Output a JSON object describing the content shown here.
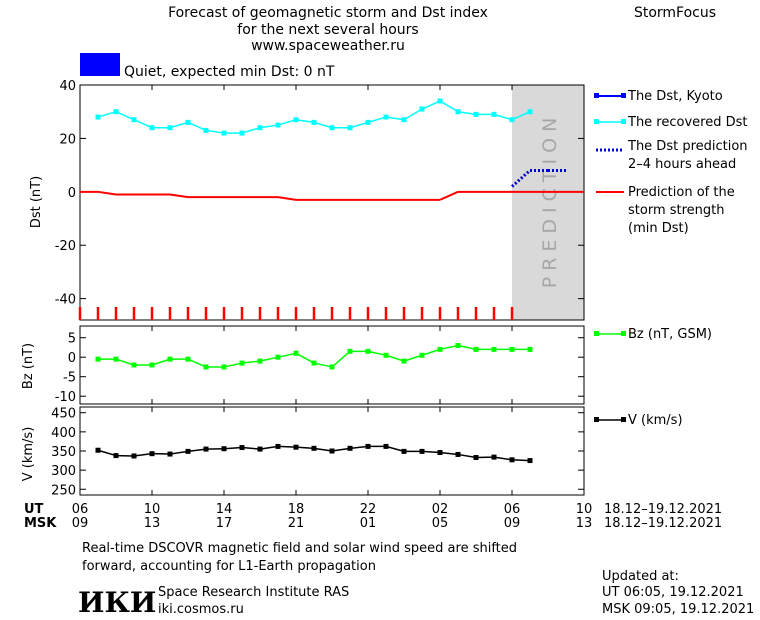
{
  "header": {
    "title_lines": [
      "Forecast of geomagnetic storm and Dst index",
      "for the next several hours",
      "www.spaceweather.ru"
    ],
    "brand": "StormFocus",
    "status_text": "Quiet, expected min Dst: 0 nT",
    "status_color": "#0000ff"
  },
  "legend": {
    "dst_kyoto": "The Dst, Kyoto",
    "recovered": "The recovered Dst",
    "prediction_line1": "The Dst prediction",
    "prediction_line2": "2–4 hours ahead",
    "strength_line1": "Prediction of the",
    "strength_line2": "storm strength",
    "strength_line3": "(min Dst)",
    "bz": "Bz (nT, GSM)",
    "v": "V (km/s)"
  },
  "colors": {
    "dst_kyoto": "#0000ff",
    "recovered": "#00ffff",
    "prediction": "#0000cc",
    "strength": "#ff0000",
    "bz": "#00ff00",
    "v": "#000000",
    "prediction_band": "#d9d9d9"
  },
  "prediction_label": "PREDICTION",
  "time_axis": {
    "ut_label": "UT",
    "msk_label": "MSK",
    "ut_ticks": [
      "06",
      "10",
      "14",
      "18",
      "22",
      "02",
      "06",
      "10"
    ],
    "msk_ticks": [
      "09",
      "13",
      "17",
      "21",
      "01",
      "05",
      "09",
      "13"
    ],
    "ut_range": "18.12–19.12.2021",
    "msk_range": "18.12–19.12.2021"
  },
  "footer": {
    "note_line1": "Real-time DSCOVR magnetic field and solar wind speed are shifted",
    "note_line2": "forward, accounting for L1-Earth propagation",
    "updated_label": "Updated at:",
    "updated_ut": "UT   06:05, 19.12.2021",
    "updated_msk": "MSK 09:05, 19.12.2021",
    "logo_text": "ИКИ",
    "institute": "Space Research Institute RAS",
    "site": "iki.cosmos.ru"
  },
  "chart_data": [
    {
      "type": "line",
      "name": "dst-panel",
      "ylabel": "Dst (nT)",
      "ylim": [
        -48,
        40
      ],
      "yticks": [
        40,
        20,
        0,
        -20,
        -40
      ],
      "x_unit": "hours since 06 UT 18.12.2021",
      "xlim": [
        0,
        28
      ],
      "prediction_start": 24,
      "series": [
        {
          "name": "The recovered Dst",
          "x": [
            1,
            2,
            3,
            4,
            5,
            6,
            7,
            8,
            9,
            10,
            11,
            12,
            13,
            14,
            15,
            16,
            17,
            18,
            19,
            20,
            21,
            22,
            23,
            24,
            25
          ],
          "y": [
            28,
            30,
            27,
            24,
            24,
            26,
            23,
            22,
            22,
            24,
            25,
            27,
            26,
            24,
            24,
            26,
            28,
            27,
            31,
            34,
            30,
            29,
            29,
            27,
            30
          ]
        },
        {
          "name": "Prediction of the storm strength (min Dst)",
          "x": [
            0,
            1,
            2,
            3,
            4,
            5,
            6,
            7,
            8,
            9,
            10,
            11,
            12,
            13,
            14,
            15,
            16,
            17,
            18,
            19,
            20,
            21,
            22,
            23,
            24,
            25,
            26,
            27,
            28
          ],
          "y": [
            0,
            0,
            -1,
            -1,
            -1,
            -1,
            -2,
            -2,
            -2,
            -2,
            -2,
            -2,
            -3,
            -3,
            -3,
            -3,
            -3,
            -3,
            -3,
            -3,
            -3,
            0,
            0,
            0,
            0,
            0,
            0,
            0,
            0
          ]
        },
        {
          "name": "The Dst prediction 2–4 hours ahead",
          "x": [
            24,
            24.5,
            25,
            26,
            27
          ],
          "y": [
            2,
            5,
            8,
            8,
            8
          ]
        }
      ]
    },
    {
      "type": "line",
      "name": "bz-panel",
      "ylabel": "Bz (nT)",
      "ylim": [
        -12,
        8
      ],
      "yticks": [
        5,
        0,
        -5,
        -10
      ],
      "series": [
        {
          "name": "Bz (nT, GSM)",
          "x": [
            1,
            2,
            3,
            4,
            5,
            6,
            7,
            8,
            9,
            10,
            11,
            12,
            13,
            14,
            15,
            16,
            17,
            18,
            19,
            20,
            21,
            22,
            23,
            24,
            25
          ],
          "y": [
            -0.5,
            -0.5,
            -2,
            -2,
            -0.5,
            -0.5,
            -2.5,
            -2.5,
            -1.5,
            -1,
            0,
            1,
            -1.5,
            -2.5,
            1.5,
            1.5,
            0.5,
            -1,
            0.5,
            2,
            3,
            2,
            2,
            2,
            2
          ]
        }
      ]
    },
    {
      "type": "line",
      "name": "v-panel",
      "ylabel": "V (km/s)",
      "ylim": [
        235,
        465
      ],
      "yticks": [
        450,
        400,
        350,
        300,
        250
      ],
      "series": [
        {
          "name": "V (km/s)",
          "x": [
            1,
            2,
            3,
            4,
            5,
            6,
            7,
            8,
            9,
            10,
            11,
            12,
            13,
            14,
            15,
            16,
            17,
            18,
            19,
            20,
            21,
            22,
            23,
            24,
            25
          ],
          "y": [
            352,
            338,
            337,
            343,
            342,
            349,
            355,
            356,
            359,
            355,
            362,
            360,
            357,
            350,
            357,
            362,
            362,
            349,
            349,
            346,
            341,
            333,
            334,
            327,
            325
          ]
        }
      ]
    }
  ]
}
